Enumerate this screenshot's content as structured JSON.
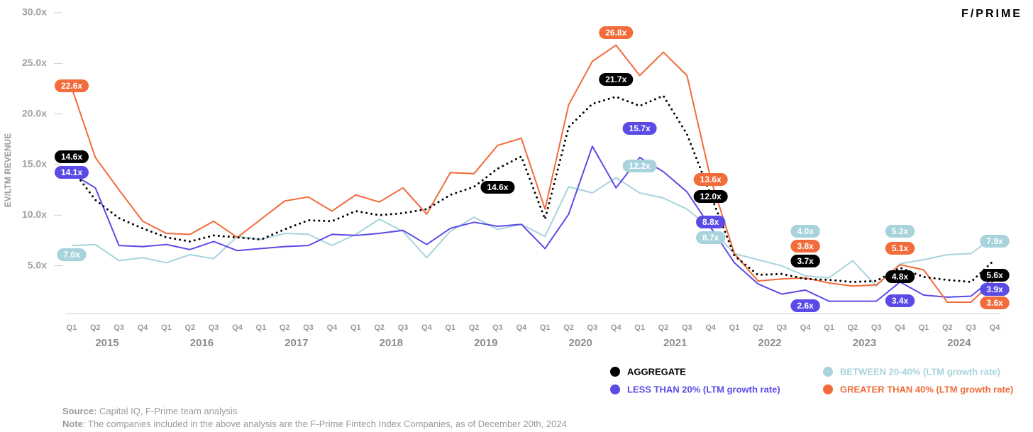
{
  "logo": "F/PRIME",
  "chart_data": {
    "type": "line",
    "y_label": "EV/LTM REVENUE",
    "categories": [
      "Q1",
      "Q2",
      "Q3",
      "Q4",
      "Q1",
      "Q2",
      "Q3",
      "Q4",
      "Q1",
      "Q2",
      "Q3",
      "Q4",
      "Q1",
      "Q2",
      "Q3",
      "Q4",
      "Q1",
      "Q2",
      "Q3",
      "Q4",
      "Q1",
      "Q2",
      "Q3",
      "Q4",
      "Q1",
      "Q2",
      "Q3",
      "Q4",
      "Q1",
      "Q2",
      "Q3",
      "Q4",
      "Q1",
      "Q2",
      "Q3",
      "Q4",
      "Q1",
      "Q2",
      "Q3",
      "Q4"
    ],
    "years": [
      "2015",
      "2016",
      "2017",
      "2018",
      "2019",
      "2020",
      "2021",
      "2022",
      "2023",
      "2024"
    ],
    "ylim": [
      0,
      30
    ],
    "yticks": [
      {
        "value": 5,
        "label": "5.0x"
      },
      {
        "value": 10,
        "label": "10.0x"
      },
      {
        "value": 15,
        "label": "15.0x"
      },
      {
        "value": 20,
        "label": "20.0x"
      },
      {
        "value": 25,
        "label": "25.0x"
      },
      {
        "value": 30,
        "label": "30.0x"
      }
    ],
    "series": [
      {
        "name": "AGGREGATE",
        "color": "#000000",
        "style": "dotted",
        "values": [
          14.6,
          11.5,
          9.7,
          8.7,
          7.8,
          7.4,
          8.0,
          7.8,
          7.6,
          8.6,
          9.5,
          9.4,
          10.4,
          10.0,
          10.2,
          10.6,
          12.0,
          12.8,
          14.6,
          15.8,
          9.6,
          18.7,
          21.0,
          21.7,
          20.8,
          21.8,
          18.0,
          12.0,
          6.0,
          4.1,
          4.2,
          3.7,
          3.6,
          3.4,
          3.5,
          4.8,
          3.9,
          3.6,
          3.4,
          5.6
        ],
        "value_labels": [
          "14.6x",
          null,
          null,
          null,
          null,
          null,
          null,
          null,
          null,
          null,
          null,
          null,
          null,
          null,
          null,
          null,
          null,
          null,
          "14.6x",
          null,
          null,
          null,
          null,
          "21.7x",
          null,
          null,
          null,
          "12.0x",
          null,
          null,
          null,
          "3.7x",
          null,
          null,
          null,
          "4.8x",
          null,
          null,
          null,
          "5.6x"
        ]
      },
      {
        "name": "BETWEEN 20-40% (LTM growth rate)",
        "color": "#a8d3dc",
        "style": "solid",
        "values": [
          7.0,
          7.1,
          5.5,
          5.8,
          5.3,
          6.1,
          5.7,
          7.9,
          7.6,
          8.2,
          8.1,
          7.0,
          8.1,
          9.6,
          8.4,
          5.8,
          8.4,
          9.8,
          8.6,
          9.1,
          7.9,
          12.8,
          12.2,
          13.7,
          12.2,
          11.7,
          10.6,
          8.7,
          6.2,
          5.6,
          5.0,
          4.0,
          3.8,
          5.5,
          3.0,
          5.2,
          5.6,
          6.1,
          6.2,
          7.9
        ],
        "value_labels": [
          "7.0x",
          null,
          null,
          null,
          null,
          null,
          null,
          null,
          null,
          null,
          null,
          null,
          null,
          null,
          null,
          null,
          null,
          null,
          null,
          null,
          null,
          null,
          null,
          null,
          "12.2x",
          null,
          null,
          "8.7x",
          null,
          null,
          null,
          "4.0x",
          null,
          null,
          null,
          "5.2x",
          null,
          null,
          null,
          "7.9x"
        ]
      },
      {
        "name": "LESS THAN 20% (LTM growth rate)",
        "color": "#5b4be6",
        "style": "solid",
        "values": [
          14.1,
          12.7,
          7.0,
          6.9,
          7.1,
          6.6,
          7.4,
          6.5,
          6.7,
          6.9,
          7.0,
          8.1,
          8.0,
          8.2,
          8.5,
          7.1,
          8.7,
          9.3,
          8.9,
          9.1,
          6.7,
          10.1,
          16.8,
          12.7,
          15.7,
          14.3,
          12.3,
          8.8,
          5.3,
          3.2,
          2.2,
          2.6,
          1.5,
          1.5,
          1.5,
          3.4,
          2.1,
          1.9,
          2.0,
          3.9
        ],
        "value_labels": [
          "14.1x",
          null,
          null,
          null,
          null,
          null,
          null,
          null,
          null,
          null,
          null,
          null,
          null,
          null,
          null,
          null,
          null,
          null,
          null,
          null,
          null,
          null,
          null,
          null,
          "15.7x",
          null,
          null,
          "8.8x",
          null,
          null,
          null,
          "2.6x",
          null,
          null,
          null,
          "3.4x",
          null,
          null,
          null,
          "3.9x"
        ]
      },
      {
        "name": "GREATER THAN 40% (LTM growth rate)",
        "color": "#f26b3a",
        "style": "solid",
        "values": [
          22.6,
          15.7,
          12.5,
          9.4,
          8.2,
          8.1,
          9.4,
          7.8,
          9.6,
          11.4,
          11.8,
          10.4,
          12.0,
          11.3,
          12.7,
          10.1,
          14.2,
          14.1,
          16.9,
          17.6,
          10.6,
          20.9,
          25.2,
          26.8,
          23.8,
          26.1,
          23.8,
          13.6,
          6.2,
          3.5,
          3.7,
          3.8,
          3.3,
          3.0,
          3.1,
          5.1,
          4.6,
          1.4,
          1.4,
          3.6
        ],
        "value_labels": [
          "22.6x",
          null,
          null,
          null,
          null,
          null,
          null,
          null,
          null,
          null,
          null,
          null,
          null,
          null,
          null,
          null,
          null,
          null,
          null,
          null,
          null,
          null,
          null,
          "26.8x",
          null,
          null,
          null,
          "13.6x",
          null,
          null,
          null,
          "3.8x",
          null,
          null,
          null,
          "5.1x",
          null,
          null,
          null,
          "3.6x"
        ]
      }
    ]
  },
  "footer": {
    "source_label": "Source:",
    "source": "Capital IQ, F-Prime team analysis",
    "note_label": "Note",
    "note": ": The companies included in the above analysis are the F-Prime Fintech Index Companies, as of December 20th, 2024"
  }
}
